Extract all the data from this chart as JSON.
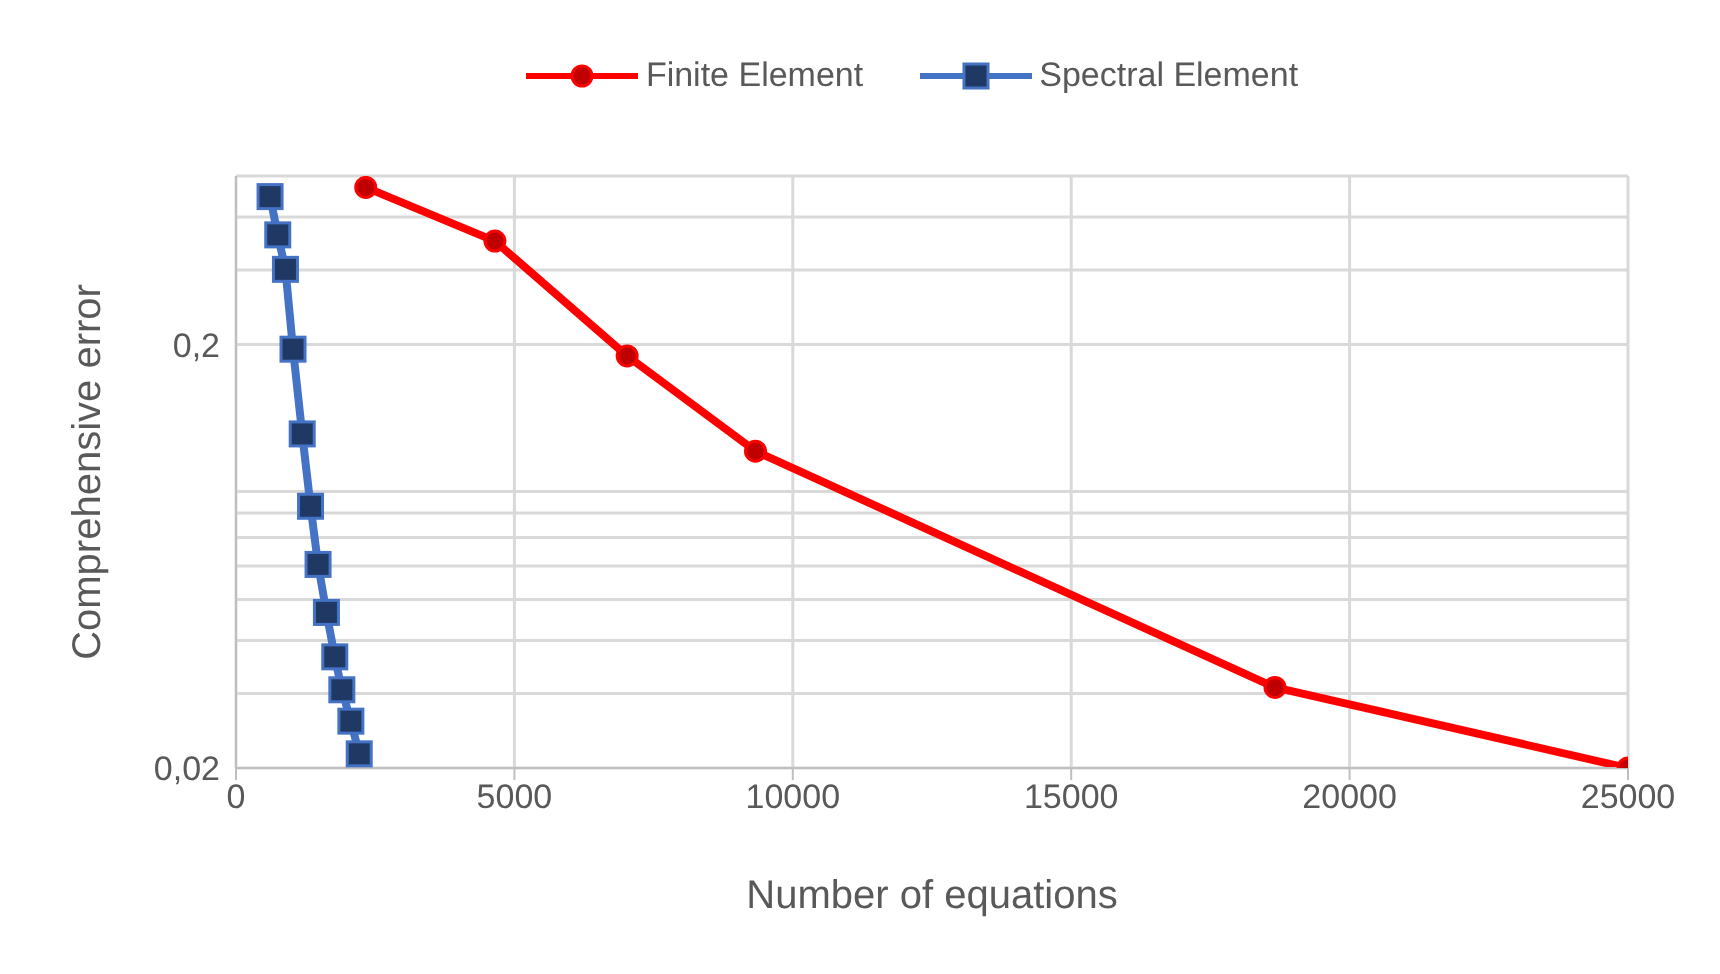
{
  "chart_data": {
    "type": "line",
    "xlabel": "Number of equations",
    "ylabel": "Comprehensive error",
    "log": "y",
    "grid": true,
    "legend": "top",
    "xlim": [
      0,
      25000
    ],
    "xticks": [
      0,
      5000,
      10000,
      15000,
      20000,
      25000
    ],
    "ylim": [
      0.02,
      0.5
    ],
    "yticks": [
      {
        "value": 0.02,
        "label": "0,02"
      },
      {
        "value": 0.03,
        "label": null
      },
      {
        "value": 0.04,
        "label": null
      },
      {
        "value": 0.05,
        "label": null
      },
      {
        "value": 0.06,
        "label": null
      },
      {
        "value": 0.07,
        "label": null
      },
      {
        "value": 0.08,
        "label": null
      },
      {
        "value": 0.09,
        "label": null
      },
      {
        "value": 0.2,
        "label": "0,2"
      },
      {
        "value": 0.3,
        "label": null
      },
      {
        "value": 0.4,
        "label": null
      },
      {
        "value": 0.5,
        "label": null
      }
    ],
    "series": [
      {
        "name": "Finite Element",
        "color": "#ff0000",
        "marker": "circle",
        "x": [
          2330,
          4650,
          7025,
          9330,
          18660,
          25000
        ],
        "values": [
          0.47,
          0.351,
          0.188,
          0.112,
          0.031,
          0.02
        ]
      },
      {
        "name": "Spectral Element",
        "color": "#4472c4",
        "marker": "square",
        "x": [
          612,
          750,
          888,
          1024,
          1189,
          1339,
          1474,
          1624,
          1774,
          1901,
          2063,
          2213
        ],
        "values": [
          0.447,
          0.363,
          0.301,
          0.195,
          0.123,
          0.083,
          0.0605,
          0.0466,
          0.0366,
          0.0306,
          0.0258,
          0.0216
        ]
      }
    ]
  }
}
